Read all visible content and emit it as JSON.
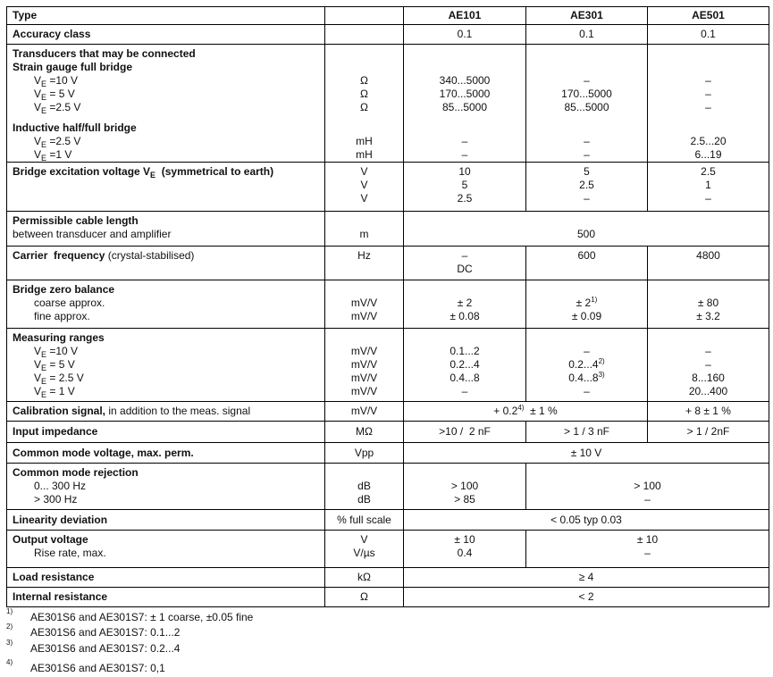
{
  "table": {
    "rows": [
      {
        "h": 20,
        "label": [
          {
            "cls": "b",
            "segs": [
              "Type"
            ]
          }
        ],
        "unit": [],
        "values": [
          {
            "span": 1,
            "lines": [
              {
                "cls": "b",
                "segs": [
                  "AE101"
                ]
              }
            ]
          },
          {
            "span": 1,
            "lines": [
              {
                "cls": "b",
                "segs": [
                  "AE301"
                ]
              }
            ]
          },
          {
            "span": 1,
            "lines": [
              {
                "cls": "b",
                "segs": [
                  "AE501"
                ]
              }
            ]
          }
        ]
      },
      {
        "h": 22,
        "label": [
          {
            "cls": "b",
            "segs": [
              "Accuracy class"
            ]
          }
        ],
        "unit": [],
        "values": [
          {
            "span": 1,
            "lines": [
              "0.1"
            ]
          },
          {
            "span": 1,
            "lines": [
              "0.1"
            ]
          },
          {
            "span": 1,
            "lines": [
              "0.1"
            ]
          }
        ]
      },
      {
        "h": 132,
        "label": [
          {
            "cls": "b",
            "segs": [
              "Transducers that may be connected"
            ]
          },
          {
            "cls": "b",
            "segs": [
              "Strain gauge full bridge"
            ]
          },
          {
            "cls": "i",
            "segs": [
              "V",
              {
                "t": "E",
                "s": "sub"
              },
              " =10 V"
            ]
          },
          {
            "cls": "i",
            "segs": [
              "V",
              {
                "t": "E",
                "s": "sub"
              },
              " = 5 V"
            ]
          },
          {
            "cls": "i",
            "segs": [
              "V",
              {
                "t": "E",
                "s": "sub"
              },
              " =2.5 V"
            ]
          },
          {
            "cls": "gap",
            "segs": []
          },
          {
            "cls": "b",
            "segs": [
              "Inductive half/full bridge"
            ]
          },
          {
            "cls": "i",
            "segs": [
              "V",
              {
                "t": "E",
                "s": "sub"
              },
              " =2.5 V"
            ]
          },
          {
            "cls": "i",
            "segs": [
              "V",
              {
                "t": "E",
                "s": "sub"
              },
              " =1 V"
            ]
          }
        ],
        "unit": [
          "",
          "",
          "Ω",
          "Ω",
          "Ω",
          {
            "cls": "gap",
            "segs": []
          },
          "",
          "mH",
          "mH"
        ],
        "values": [
          {
            "span": 1,
            "lines": [
              "",
              "",
              "340...5000",
              "170...5000",
              "85...5000",
              {
                "cls": "gap",
                "segs": []
              },
              "",
              "–",
              "–"
            ]
          },
          {
            "span": 1,
            "lines": [
              "",
              "",
              "–",
              "170...5000",
              "85...5000",
              {
                "cls": "gap",
                "segs": []
              },
              "",
              "–",
              "–"
            ]
          },
          {
            "span": 1,
            "lines": [
              "",
              "",
              "–",
              "–",
              "–",
              {
                "cls": "gap",
                "segs": []
              },
              "",
              "2.5...20",
              "6...19"
            ]
          }
        ]
      },
      {
        "h": 55,
        "label": [
          {
            "cls": "b",
            "segs": [
              "Bridge excitation voltage V",
              {
                "t": "E",
                "s": "sub"
              },
              "  (symmetrical to earth)"
            ]
          }
        ],
        "unit": [
          "V",
          "V",
          "V"
        ],
        "values": [
          {
            "span": 1,
            "lines": [
              "10",
              "5",
              "2.5"
            ]
          },
          {
            "span": 1,
            "lines": [
              "5",
              "2.5",
              "–"
            ]
          },
          {
            "span": 1,
            "lines": [
              "2.5",
              "1",
              "–"
            ]
          }
        ]
      },
      {
        "h": 39,
        "label": [
          {
            "cls": "b",
            "segs": [
              "Permissible cable length"
            ]
          },
          "between transducer and amplifier"
        ],
        "unit": [
          "",
          "m"
        ],
        "values": [
          {
            "span": 3,
            "lines": [
              "",
              "500"
            ]
          }
        ]
      },
      {
        "h": 38,
        "label": [
          {
            "cls": "",
            "segs": [
              {
                "t": "Carrier  frequency",
                "s": "b"
              },
              " (crystal-stabilised)"
            ]
          }
        ],
        "unit": [
          "Hz"
        ],
        "values": [
          {
            "span": 1,
            "lines": [
              "–",
              "DC"
            ]
          },
          {
            "span": 1,
            "lines": [
              "600"
            ]
          },
          {
            "span": 1,
            "lines": [
              "4800"
            ]
          }
        ]
      },
      {
        "h": 54,
        "label": [
          {
            "cls": "b",
            "segs": [
              "Bridge zero balance"
            ]
          },
          {
            "cls": "i",
            "segs": [
              "coarse approx."
            ]
          },
          {
            "cls": "i",
            "segs": [
              "fine approx."
            ]
          }
        ],
        "unit": [
          "",
          "mV/V",
          "mV/V"
        ],
        "values": [
          {
            "span": 1,
            "lines": [
              "",
              "± 2",
              "± 0.08"
            ]
          },
          {
            "span": 1,
            "lines": [
              "",
              {
                "cls": "",
                "segs": [
                  "± 2",
                  {
                    "t": "1)",
                    "s": "sup"
                  }
                ]
              },
              "± 0.09"
            ]
          },
          {
            "span": 1,
            "lines": [
              "",
              "± 80",
              "± 3.2"
            ]
          }
        ]
      },
      {
        "h": 82,
        "label": [
          {
            "cls": "b",
            "segs": [
              "Measuring ranges"
            ]
          },
          {
            "cls": "i",
            "segs": [
              "V",
              {
                "t": "E",
                "s": "sub"
              },
              " =10 V"
            ]
          },
          {
            "cls": "i",
            "segs": [
              "V",
              {
                "t": "E",
                "s": "sub"
              },
              " = 5 V"
            ]
          },
          {
            "cls": "i",
            "segs": [
              "V",
              {
                "t": "E",
                "s": "sub"
              },
              " = 2.5 V"
            ]
          },
          {
            "cls": "i",
            "segs": [
              "V",
              {
                "t": "E",
                "s": "sub"
              },
              " = 1 V"
            ]
          }
        ],
        "unit": [
          "",
          "mV/V",
          "mV/V",
          "mV/V",
          "mV/V"
        ],
        "values": [
          {
            "span": 1,
            "lines": [
              "",
              "0.1...2",
              "0.2...4",
              "0.4...8",
              "–"
            ]
          },
          {
            "span": 1,
            "lines": [
              "",
              "–",
              {
                "cls": "",
                "segs": [
                  "0.2...4",
                  {
                    "t": "2)",
                    "s": "sup"
                  }
                ]
              },
              {
                "cls": "",
                "segs": [
                  "0.4...8",
                  {
                    "t": "3)",
                    "s": "sup"
                  }
                ]
              },
              "–"
            ]
          },
          {
            "span": 1,
            "lines": [
              "",
              "–",
              "–",
              "8...160",
              "20...400"
            ]
          }
        ]
      },
      {
        "h": 22,
        "label": [
          {
            "cls": "",
            "segs": [
              {
                "t": "Calibration signal,",
                "s": "b"
              },
              " in addition to the meas. signal"
            ]
          }
        ],
        "unit": [
          "mV/V"
        ],
        "values": [
          {
            "span": 2,
            "lines": [
              {
                "cls": "",
                "segs": [
                  "+ 0.2",
                  {
                    "t": "4)",
                    "s": "sup"
                  },
                  "  ± 1 %"
                ]
              }
            ]
          },
          {
            "span": 1,
            "lines": [
              "+ 8 ± 1 %"
            ]
          }
        ]
      },
      {
        "h": 24,
        "label": [
          {
            "cls": "b",
            "segs": [
              "Input impedance"
            ]
          }
        ],
        "unit": [
          "MΩ"
        ],
        "values": [
          {
            "span": 1,
            "lines": [
              ">10 /  2 nF"
            ]
          },
          {
            "span": 1,
            "lines": [
              "> 1 / 3 nF"
            ]
          },
          {
            "span": 1,
            "lines": [
              "> 1 / 2nF"
            ]
          }
        ]
      },
      {
        "h": 23,
        "label": [
          {
            "cls": "b",
            "segs": [
              "Common mode voltage, max. perm."
            ]
          }
        ],
        "unit": [
          "Vpp"
        ],
        "values": [
          {
            "span": 3,
            "lines": [
              "± 10 V"
            ]
          }
        ]
      },
      {
        "h": 52,
        "label": [
          {
            "cls": "b",
            "segs": [
              "Common mode rejection"
            ]
          },
          {
            "cls": "i",
            "segs": [
              "0... 300 Hz"
            ]
          },
          {
            "cls": "i",
            "segs": [
              "> 300 Hz"
            ]
          }
        ],
        "unit": [
          "",
          "dB",
          "dB"
        ],
        "values": [
          {
            "span": 1,
            "lines": [
              "",
              "> 100",
              "> 85"
            ]
          },
          {
            "span": 2,
            "lines": [
              "",
              "> 100",
              "–"
            ]
          }
        ]
      },
      {
        "h": 23,
        "label": [
          {
            "cls": "b",
            "segs": [
              "Linearity deviation"
            ]
          }
        ],
        "unit": [
          "% full scale"
        ],
        "values": [
          {
            "span": 3,
            "lines": [
              "< 0.05 typ 0.03"
            ]
          }
        ]
      },
      {
        "h": 42,
        "label": [
          {
            "cls": "b",
            "segs": [
              "Output voltage"
            ]
          },
          {
            "cls": "i",
            "segs": [
              "Rise rate, max."
            ]
          }
        ],
        "unit": [
          "V",
          "V/µs"
        ],
        "values": [
          {
            "span": 1,
            "lines": [
              "± 10",
              "0.4"
            ]
          },
          {
            "span": 2,
            "lines": [
              "± 10",
              "–"
            ]
          }
        ]
      },
      {
        "h": 22,
        "label": [
          {
            "cls": "b",
            "segs": [
              "Load resistance"
            ]
          }
        ],
        "unit": [
          "kΩ"
        ],
        "values": [
          {
            "span": 3,
            "lines": [
              "≥ 4"
            ]
          }
        ]
      },
      {
        "h": 22,
        "label": [
          {
            "cls": "b",
            "segs": [
              "Internal resistance"
            ]
          }
        ],
        "unit": [
          "Ω"
        ],
        "values": [
          {
            "span": 3,
            "lines": [
              "< 2"
            ]
          }
        ]
      }
    ]
  },
  "footnotes": [
    {
      "num": "1)",
      "text": "AE301S6 and AE301S7:  ± 1 coarse,  ±0.05 fine"
    },
    {
      "num": "2)",
      "text": "AE301S6 and AE301S7: 0.1...2"
    },
    {
      "num": "3)",
      "text": "AE301S6 and AE301S7: 0.2...4"
    },
    {
      "num": "4)",
      "text": "AE301S6 and AE301S7: 0,1"
    }
  ]
}
